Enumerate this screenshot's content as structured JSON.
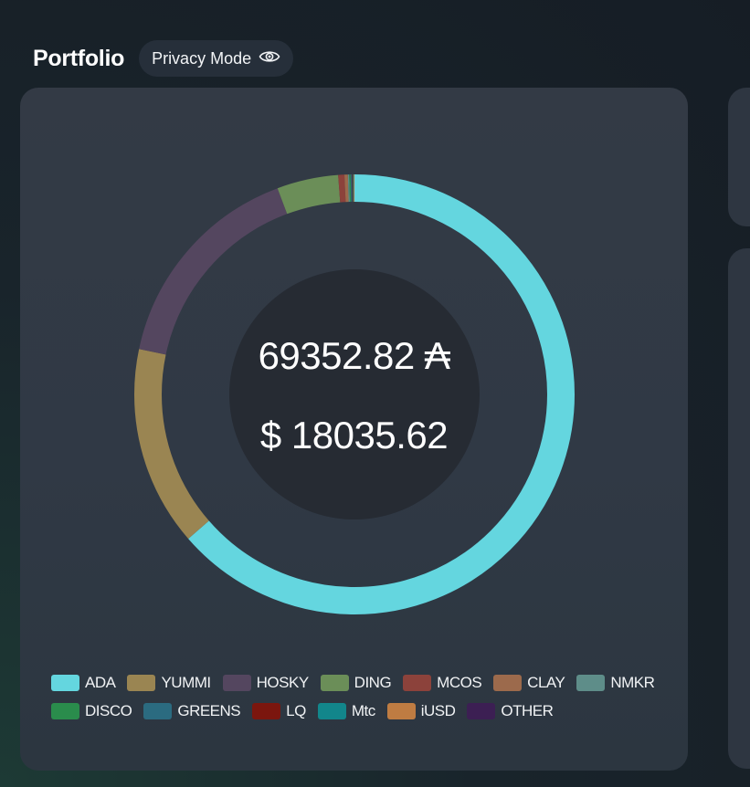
{
  "header": {
    "title": "Portfolio",
    "privacy_label": "Privacy Mode",
    "privacy_icon": "eye-icon"
  },
  "portfolio": {
    "ada_total": "69352.82",
    "ada_symbol": "₳",
    "usd_symbol": "$",
    "usd_total": "18035.62"
  },
  "chart_data": {
    "type": "pie",
    "variant": "donut",
    "categories": [
      "ADA",
      "YUMMI",
      "HOSKY",
      "DING",
      "MCOS",
      "CLAY",
      "NMKR",
      "DISCO",
      "GREENS",
      "LQ",
      "Mtc",
      "iUSD",
      "OTHER"
    ],
    "values": [
      63.6,
      14.7,
      16.0,
      4.5,
      0.45,
      0.25,
      0.1,
      0.1,
      0.1,
      0.06,
      0.06,
      0.06,
      0.02
    ],
    "colors": [
      "#64d6df",
      "#9a8552",
      "#54465f",
      "#6b8e58",
      "#8c423b",
      "#9c6a4c",
      "#5e8d89",
      "#2a8c4c",
      "#2b6b80",
      "#7b160e",
      "#12868b",
      "#bf7c42",
      "#3c1f53"
    ],
    "legend_position": "bottom"
  }
}
